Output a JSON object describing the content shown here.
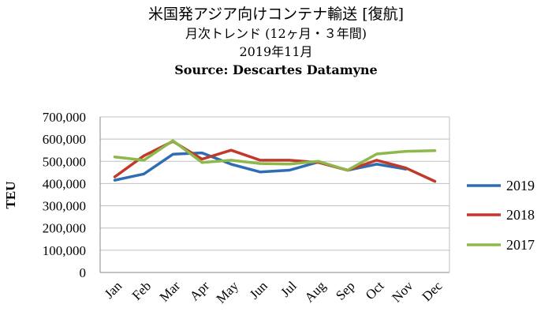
{
  "chart_data": {
    "type": "line",
    "title": "米国発アジア向けコンテナ輸送 [復航]",
    "subtitle_lines": [
      "月次トレンド (12ヶ月・３年間)",
      "2019年11月",
      "Source: Descartes Datamyne"
    ],
    "ylabel": "TEU",
    "xlabel": "",
    "categories": [
      "Jan",
      "Feb",
      "Mar",
      "Apr",
      "May",
      "Jun",
      "Jul",
      "Aug",
      "Sep",
      "Oct",
      "Nov",
      "Dec"
    ],
    "ylim": [
      0,
      700000
    ],
    "yticks": [
      "0",
      "100,000",
      "200,000",
      "300,000",
      "400,000",
      "500,000",
      "600,000",
      "700,000"
    ],
    "grid": true,
    "legend_position": "right",
    "series": [
      {
        "name": "2019",
        "color": "#2e6db4",
        "values": [
          415000,
          443000,
          532000,
          538000,
          487000,
          452000,
          460000,
          497000,
          460000,
          487000,
          465000,
          null
        ]
      },
      {
        "name": "2018",
        "color": "#c0392b",
        "values": [
          430000,
          525000,
          590000,
          510000,
          550000,
          505000,
          505000,
          495000,
          460000,
          505000,
          470000,
          410000
        ]
      },
      {
        "name": "2017",
        "color": "#8db84a",
        "values": [
          520000,
          505000,
          593000,
          495000,
          505000,
          490000,
          488000,
          500000,
          460000,
          533000,
          545000,
          548000
        ]
      }
    ]
  }
}
